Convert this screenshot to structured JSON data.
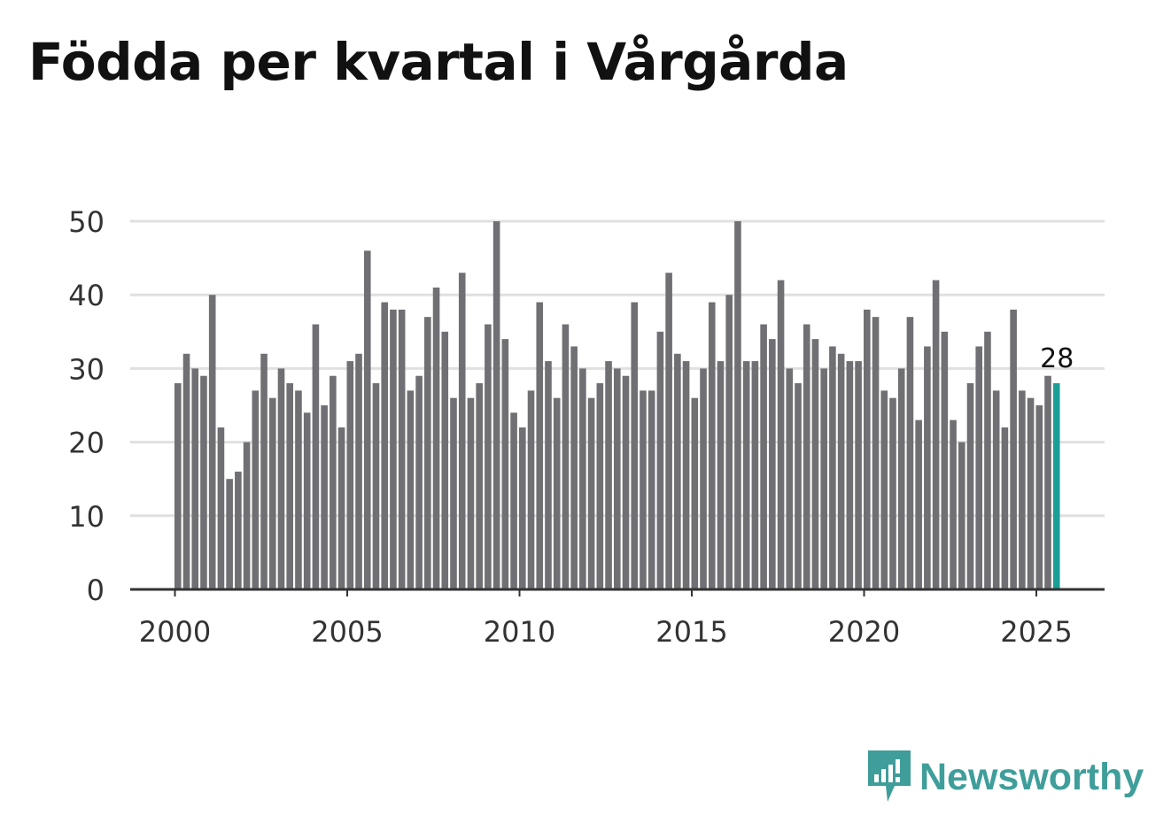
{
  "title": "Födda per kvartal i Vårgårda",
  "brand": {
    "name": "Newsworthy",
    "logo_icon": "newsworthy-logo-icon",
    "color": "#3f9e9a"
  },
  "colors": {
    "bar": "#707074",
    "highlight": "#1a9e96",
    "grid": "#e0e0e0",
    "axis": "#333333"
  },
  "chart_data": {
    "type": "bar",
    "title": "Födda per kvartal i Vårgårda",
    "xlabel": "",
    "ylabel": "",
    "ylim": [
      0,
      50
    ],
    "yticks": [
      0,
      10,
      20,
      30,
      40,
      50
    ],
    "xticks": [
      {
        "label": "2000",
        "year": 2000
      },
      {
        "label": "2005",
        "year": 2005
      },
      {
        "label": "2010",
        "year": 2010
      },
      {
        "label": "2015",
        "year": 2015
      },
      {
        "label": "2020",
        "year": 2020
      },
      {
        "label": "2025",
        "year": 2025
      }
    ],
    "start_year": 2000,
    "start_quarter": 1,
    "grid": true,
    "values": [
      28,
      32,
      30,
      29,
      40,
      22,
      15,
      16,
      20,
      27,
      32,
      26,
      30,
      28,
      27,
      24,
      36,
      25,
      29,
      22,
      31,
      32,
      46,
      28,
      39,
      38,
      38,
      27,
      29,
      37,
      41,
      35,
      26,
      43,
      26,
      28,
      36,
      50,
      34,
      24,
      22,
      27,
      39,
      31,
      26,
      36,
      33,
      30,
      26,
      28,
      31,
      30,
      29,
      39,
      27,
      27,
      35,
      43,
      32,
      31,
      26,
      30,
      39,
      31,
      40,
      50,
      31,
      31,
      36,
      34,
      42,
      30,
      28,
      36,
      34,
      30,
      33,
      32,
      31,
      31,
      38,
      37,
      27,
      26,
      30,
      37,
      23,
      33,
      42,
      35,
      23,
      20,
      28,
      33,
      35,
      27,
      22,
      38,
      27,
      26,
      25,
      29,
      28
    ],
    "highlight_last": true,
    "annotation": {
      "label": "28",
      "value": 28
    }
  }
}
